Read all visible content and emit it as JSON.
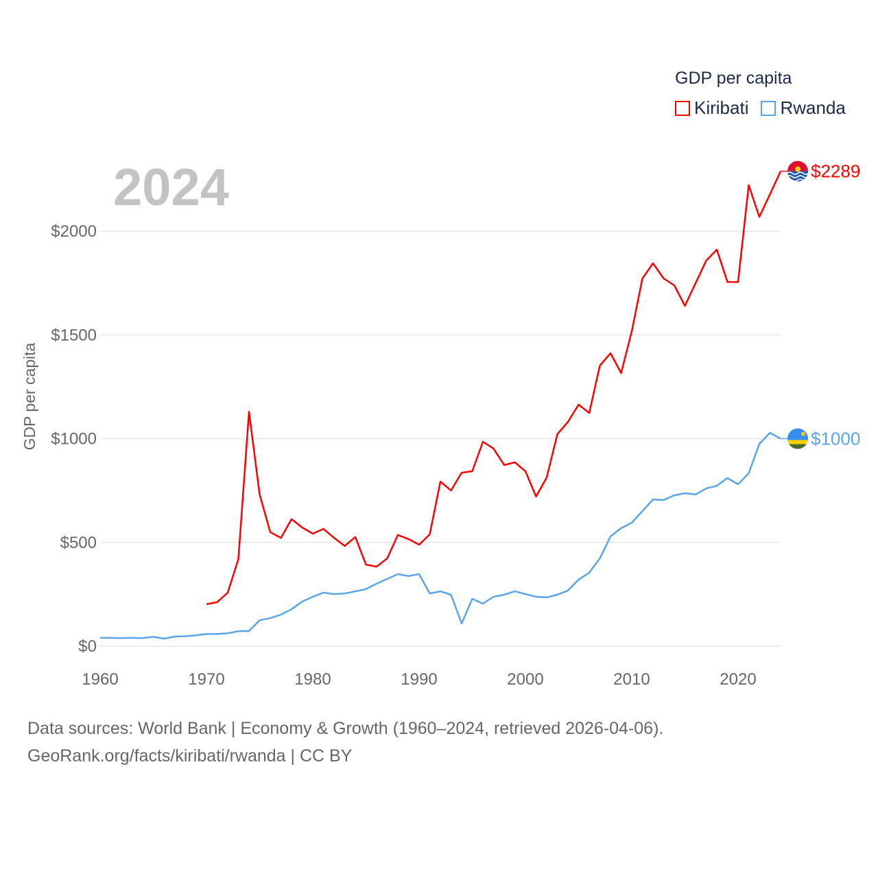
{
  "chart_data": {
    "type": "line",
    "title": "GDP per capita",
    "ylabel": "GDP per capita",
    "xlabel": "",
    "xlim": [
      1960,
      2024
    ],
    "ylim": [
      0,
      2300
    ],
    "x_ticks": [
      1960,
      1970,
      1980,
      1990,
      2000,
      2010,
      2020
    ],
    "y_ticks": [
      0,
      500,
      1000,
      1500,
      2000
    ],
    "y_tick_labels": [
      "$0",
      "$500",
      "$1000",
      "$1500",
      "$2000"
    ],
    "x_tick_labels": [
      "1960",
      "1970",
      "1980",
      "1990",
      "2000",
      "2010",
      "2020"
    ],
    "grid": true,
    "legend_position": "top-right",
    "current_year": "2024",
    "series": [
      {
        "name": "Kiribati",
        "color": "#ff0000",
        "end_label": "$2289",
        "start_year": 1970,
        "values": [
          202,
          212,
          258,
          420,
          1130,
          731,
          549,
          522,
          612,
          572,
          542,
          565,
          522,
          483,
          526,
          393,
          383,
          423,
          536,
          516,
          489,
          539,
          793,
          750,
          836,
          843,
          985,
          952,
          873,
          886,
          843,
          721,
          813,
          1021,
          1081,
          1164,
          1124,
          1352,
          1412,
          1316,
          1517,
          1772,
          1845,
          1772,
          1739,
          1640,
          1749,
          1858,
          1911,
          1755,
          1755,
          2221,
          2069,
          2178,
          2289
        ]
      },
      {
        "name": "Rwanda",
        "color": "#5aa5ea",
        "end_label": "$1000",
        "start_year": 1960,
        "values": [
          40,
          40,
          39,
          40,
          39,
          45,
          36,
          46,
          48,
          52,
          59,
          59,
          62,
          72,
          73,
          125,
          135,
          152,
          178,
          215,
          238,
          258,
          251,
          254,
          264,
          275,
          301,
          324,
          347,
          338,
          347,
          254,
          264,
          248,
          109,
          228,
          205,
          238,
          248,
          264,
          251,
          238,
          235,
          248,
          268,
          321,
          354,
          423,
          529,
          569,
          595,
          651,
          707,
          704,
          727,
          737,
          731,
          760,
          773,
          810,
          780,
          833,
          975,
          1028,
          1000
        ]
      }
    ]
  },
  "legend": {
    "title": "GDP per capita",
    "items": [
      "Kiribati",
      "Rwanda"
    ]
  },
  "footer": {
    "line1": "Data sources: World Bank | Economy & Growth (1960–2024, retrieved 2026-04-06).",
    "line2": "GeoRank.org/facts/kiribati/rwanda | CC BY"
  },
  "icons": [
    "kiribati-flag-icon",
    "rwanda-flag-icon"
  ]
}
